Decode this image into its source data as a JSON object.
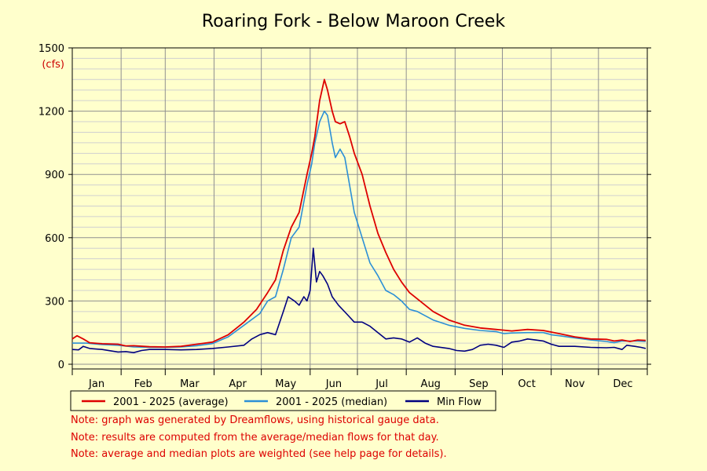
{
  "chart_data": {
    "type": "line",
    "title": "Roaring Fork - Below Maroon Creek",
    "y_unit": "(cfs)",
    "ylim": [
      0,
      1500
    ],
    "y_ticks": [
      0,
      300,
      600,
      900,
      1200,
      1500
    ],
    "x_ticks": [
      "Jan",
      "Feb",
      "Mar",
      "Apr",
      "May",
      "Jun",
      "Jul",
      "Aug",
      "Sep",
      "Oct",
      "Nov",
      "Dec"
    ],
    "grid": true,
    "legend_position": "bottom-left",
    "series": [
      {
        "name": "2001 - 2025 (average)",
        "color": "#dd0000",
        "points": [
          [
            1,
            120
          ],
          [
            4,
            135
          ],
          [
            8,
            120
          ],
          [
            12,
            102
          ],
          [
            20,
            97
          ],
          [
            30,
            95
          ],
          [
            35,
            87
          ],
          [
            40,
            88
          ],
          [
            50,
            83
          ],
          [
            60,
            82
          ],
          [
            70,
            85
          ],
          [
            80,
            95
          ],
          [
            90,
            105
          ],
          [
            100,
            140
          ],
          [
            110,
            200
          ],
          [
            118,
            260
          ],
          [
            125,
            340
          ],
          [
            130,
            400
          ],
          [
            135,
            540
          ],
          [
            140,
            650
          ],
          [
            145,
            720
          ],
          [
            150,
            900
          ],
          [
            153,
            1000
          ],
          [
            155,
            1080
          ],
          [
            158,
            1250
          ],
          [
            161,
            1350
          ],
          [
            163,
            1300
          ],
          [
            166,
            1200
          ],
          [
            168,
            1150
          ],
          [
            171,
            1140
          ],
          [
            174,
            1150
          ],
          [
            177,
            1080
          ],
          [
            180,
            1000
          ],
          [
            185,
            900
          ],
          [
            190,
            750
          ],
          [
            195,
            620
          ],
          [
            200,
            530
          ],
          [
            205,
            450
          ],
          [
            210,
            390
          ],
          [
            215,
            340
          ],
          [
            220,
            310
          ],
          [
            230,
            250
          ],
          [
            240,
            210
          ],
          [
            250,
            185
          ],
          [
            260,
            172
          ],
          [
            270,
            165
          ],
          [
            280,
            158
          ],
          [
            290,
            165
          ],
          [
            300,
            160
          ],
          [
            310,
            145
          ],
          [
            320,
            130
          ],
          [
            330,
            120
          ],
          [
            340,
            118
          ],
          [
            345,
            110
          ],
          [
            350,
            115
          ],
          [
            355,
            108
          ],
          [
            360,
            115
          ],
          [
            365,
            113
          ]
        ]
      },
      {
        "name": "2001 - 2025 (median)",
        "color": "#2b8fd6",
        "points": [
          [
            1,
            100
          ],
          [
            10,
            100
          ],
          [
            20,
            93
          ],
          [
            30,
            90
          ],
          [
            40,
            82
          ],
          [
            50,
            80
          ],
          [
            60,
            80
          ],
          [
            70,
            82
          ],
          [
            80,
            88
          ],
          [
            90,
            98
          ],
          [
            100,
            130
          ],
          [
            110,
            185
          ],
          [
            120,
            240
          ],
          [
            125,
            300
          ],
          [
            130,
            320
          ],
          [
            135,
            450
          ],
          [
            140,
            600
          ],
          [
            145,
            650
          ],
          [
            150,
            850
          ],
          [
            153,
            950
          ],
          [
            155,
            1050
          ],
          [
            158,
            1150
          ],
          [
            161,
            1200
          ],
          [
            163,
            1180
          ],
          [
            166,
            1050
          ],
          [
            168,
            980
          ],
          [
            171,
            1020
          ],
          [
            174,
            980
          ],
          [
            177,
            850
          ],
          [
            180,
            720
          ],
          [
            185,
            600
          ],
          [
            190,
            480
          ],
          [
            195,
            420
          ],
          [
            200,
            350
          ],
          [
            205,
            330
          ],
          [
            210,
            300
          ],
          [
            215,
            260
          ],
          [
            220,
            250
          ],
          [
            230,
            210
          ],
          [
            240,
            185
          ],
          [
            250,
            170
          ],
          [
            260,
            160
          ],
          [
            270,
            155
          ],
          [
            275,
            145
          ],
          [
            280,
            148
          ],
          [
            290,
            150
          ],
          [
            300,
            150
          ],
          [
            305,
            140
          ],
          [
            310,
            135
          ],
          [
            320,
            125
          ],
          [
            330,
            115
          ],
          [
            340,
            108
          ],
          [
            345,
            102
          ],
          [
            350,
            110
          ],
          [
            360,
            110
          ],
          [
            365,
            108
          ]
        ]
      },
      {
        "name": "Min Flow",
        "color": "#000080",
        "points": [
          [
            1,
            70
          ],
          [
            5,
            68
          ],
          [
            8,
            85
          ],
          [
            12,
            75
          ],
          [
            20,
            70
          ],
          [
            30,
            58
          ],
          [
            35,
            60
          ],
          [
            40,
            55
          ],
          [
            45,
            65
          ],
          [
            50,
            70
          ],
          [
            60,
            70
          ],
          [
            70,
            68
          ],
          [
            80,
            70
          ],
          [
            90,
            75
          ],
          [
            100,
            82
          ],
          [
            110,
            90
          ],
          [
            115,
            120
          ],
          [
            120,
            140
          ],
          [
            125,
            150
          ],
          [
            130,
            140
          ],
          [
            135,
            250
          ],
          [
            138,
            320
          ],
          [
            142,
            300
          ],
          [
            145,
            280
          ],
          [
            148,
            320
          ],
          [
            150,
            300
          ],
          [
            152,
            350
          ],
          [
            154,
            550
          ],
          [
            156,
            390
          ],
          [
            158,
            440
          ],
          [
            160,
            420
          ],
          [
            163,
            380
          ],
          [
            166,
            320
          ],
          [
            170,
            280
          ],
          [
            175,
            240
          ],
          [
            180,
            200
          ],
          [
            185,
            200
          ],
          [
            190,
            180
          ],
          [
            195,
            150
          ],
          [
            200,
            120
          ],
          [
            205,
            125
          ],
          [
            210,
            120
          ],
          [
            215,
            105
          ],
          [
            220,
            125
          ],
          [
            225,
            100
          ],
          [
            230,
            85
          ],
          [
            240,
            75
          ],
          [
            245,
            65
          ],
          [
            250,
            62
          ],
          [
            255,
            70
          ],
          [
            260,
            90
          ],
          [
            265,
            95
          ],
          [
            270,
            90
          ],
          [
            275,
            80
          ],
          [
            280,
            105
          ],
          [
            285,
            110
          ],
          [
            290,
            120
          ],
          [
            295,
            115
          ],
          [
            300,
            110
          ],
          [
            305,
            95
          ],
          [
            310,
            85
          ],
          [
            320,
            85
          ],
          [
            330,
            80
          ],
          [
            340,
            78
          ],
          [
            345,
            80
          ],
          [
            350,
            70
          ],
          [
            353,
            90
          ],
          [
            358,
            85
          ],
          [
            362,
            80
          ],
          [
            365,
            75
          ]
        ]
      }
    ]
  },
  "notes": [
    "Note: graph was generated by Dreamflows, using historical gauge data.",
    "Note: results are computed from the average/median flows for that day.",
    "Note: average and median plots are weighted (see help page for details)."
  ]
}
